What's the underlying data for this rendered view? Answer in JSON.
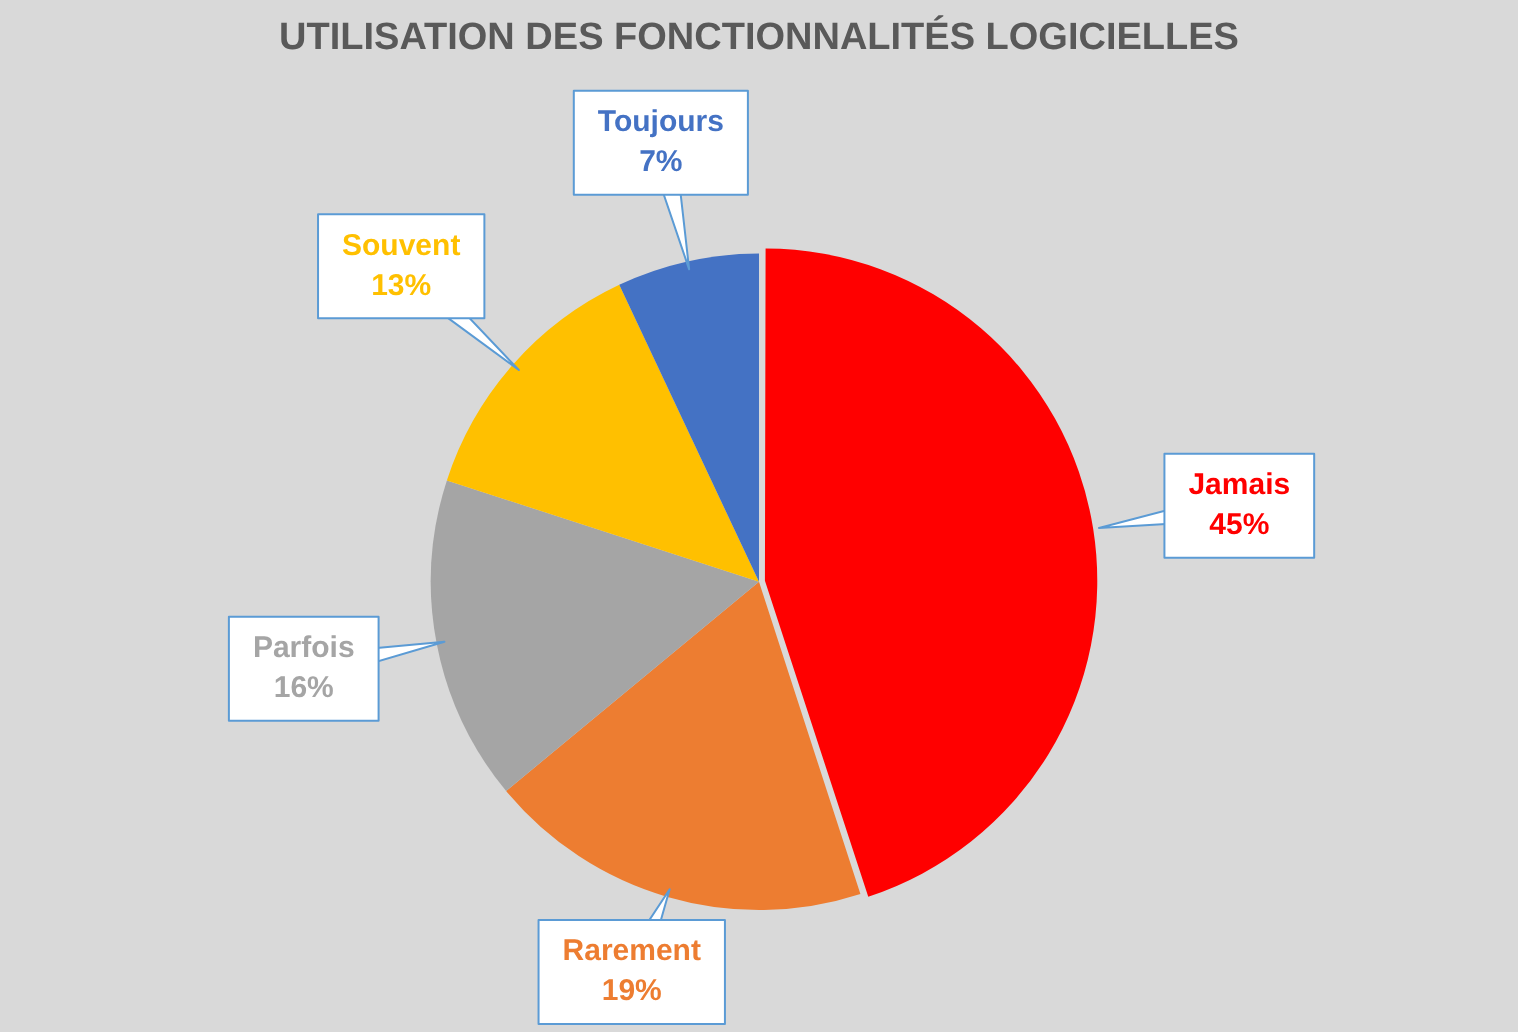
{
  "chart_data": {
    "type": "pie",
    "title": "UTILISATION DES FONCTIONNALITÉS LOGICIELLES",
    "categories": [
      "Jamais",
      "Rarement",
      "Parfois",
      "Souvent",
      "Toujours"
    ],
    "values": [
      45,
      19,
      16,
      13,
      7
    ],
    "colors": [
      "#ff0000",
      "#ed7d31",
      "#a5a5a5",
      "#ffc000",
      "#4472c4"
    ],
    "value_labels": [
      "45%",
      "19%",
      "16%",
      "13%",
      "7%"
    ]
  }
}
